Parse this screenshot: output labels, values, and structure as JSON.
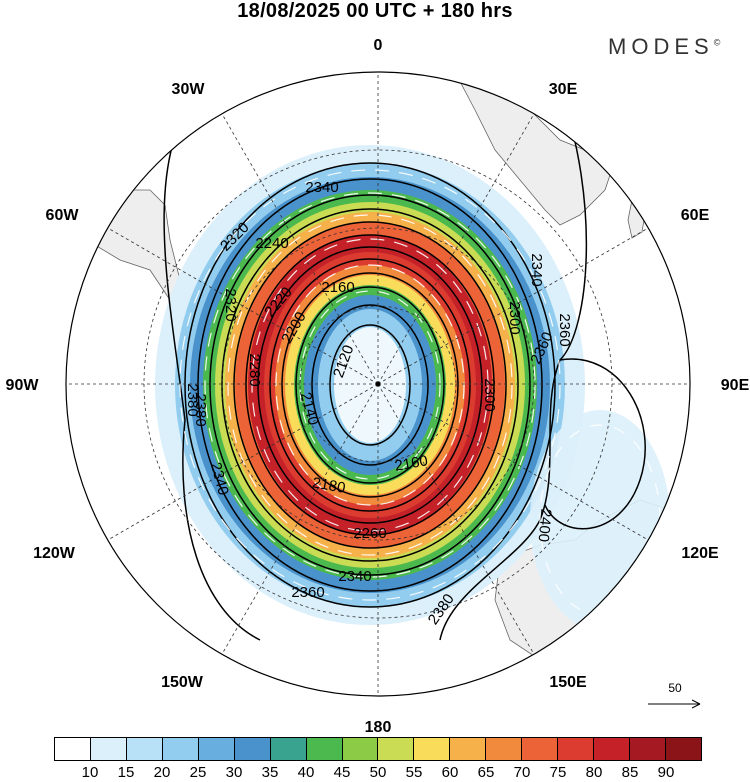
{
  "title": "18/08/2025  00 UTC  + 180 hrs",
  "brand": "MODES",
  "brand_mark": "©",
  "longitudes": [
    {
      "label": "0",
      "name": "lon-0"
    },
    {
      "label": "30E",
      "name": "lon-30e"
    },
    {
      "label": "60E",
      "name": "lon-60e"
    },
    {
      "label": "90E",
      "name": "lon-90e"
    },
    {
      "label": "120E",
      "name": "lon-120e"
    },
    {
      "label": "150E",
      "name": "lon-150e"
    },
    {
      "label": "180",
      "name": "lon-180"
    },
    {
      "label": "150W",
      "name": "lon-150w"
    },
    {
      "label": "120W",
      "name": "lon-120w"
    },
    {
      "label": "90W",
      "name": "lon-90w"
    },
    {
      "label": "60W",
      "name": "lon-60w"
    },
    {
      "label": "30W",
      "name": "lon-30w"
    }
  ],
  "contour_labels": [
    "2340",
    "2320",
    "2240",
    "2220",
    "2200",
    "2160",
    "2120",
    "2180",
    "2140",
    "2160",
    "2280",
    "2300",
    "2300",
    "2340",
    "2360",
    "2380",
    "2260",
    "2340",
    "2360",
    "2380",
    "2400",
    "2320",
    "2340",
    "2360",
    "2380"
  ],
  "vector_scale": {
    "label": "50",
    "unit": "reference arrow"
  },
  "colorbar": {
    "colors": [
      "#ffffff",
      "#dcf0fb",
      "#b8e1f7",
      "#92cdef",
      "#68afe0",
      "#4a92cc",
      "#3aa38f",
      "#4cb94f",
      "#8ccb46",
      "#c9dc53",
      "#f8dc5a",
      "#f7b14b",
      "#f28a3d",
      "#ec6337",
      "#dc3b30",
      "#c42228",
      "#a51a22",
      "#8a1418"
    ],
    "labels": [
      "10",
      "15",
      "20",
      "25",
      "30",
      "35",
      "40",
      "45",
      "50",
      "55",
      "60",
      "65",
      "70",
      "75",
      "80",
      "85",
      "90"
    ]
  }
}
